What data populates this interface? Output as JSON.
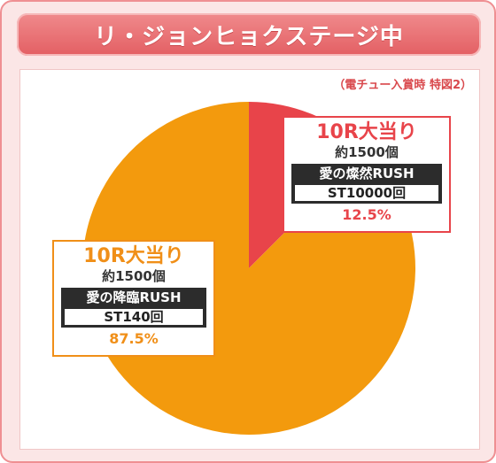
{
  "header": {
    "title": "リ・ジョンヒョクステージ中"
  },
  "note": "（電チュー入賞時 特図2）",
  "chart_data": {
    "type": "pie",
    "slices": [
      {
        "title": "10R大当り",
        "balls": "約1500個",
        "mode": "愛の燦然RUSH",
        "st": "ST10000回",
        "percent_label": "12.5%",
        "value": 12.5,
        "color": "#e8444a"
      },
      {
        "title": "10R大当り",
        "balls": "約1500個",
        "mode": "愛の降臨RUSH",
        "st": "ST140回",
        "percent_label": "87.5%",
        "value": 87.5,
        "color": "#f39a0d"
      }
    ]
  }
}
